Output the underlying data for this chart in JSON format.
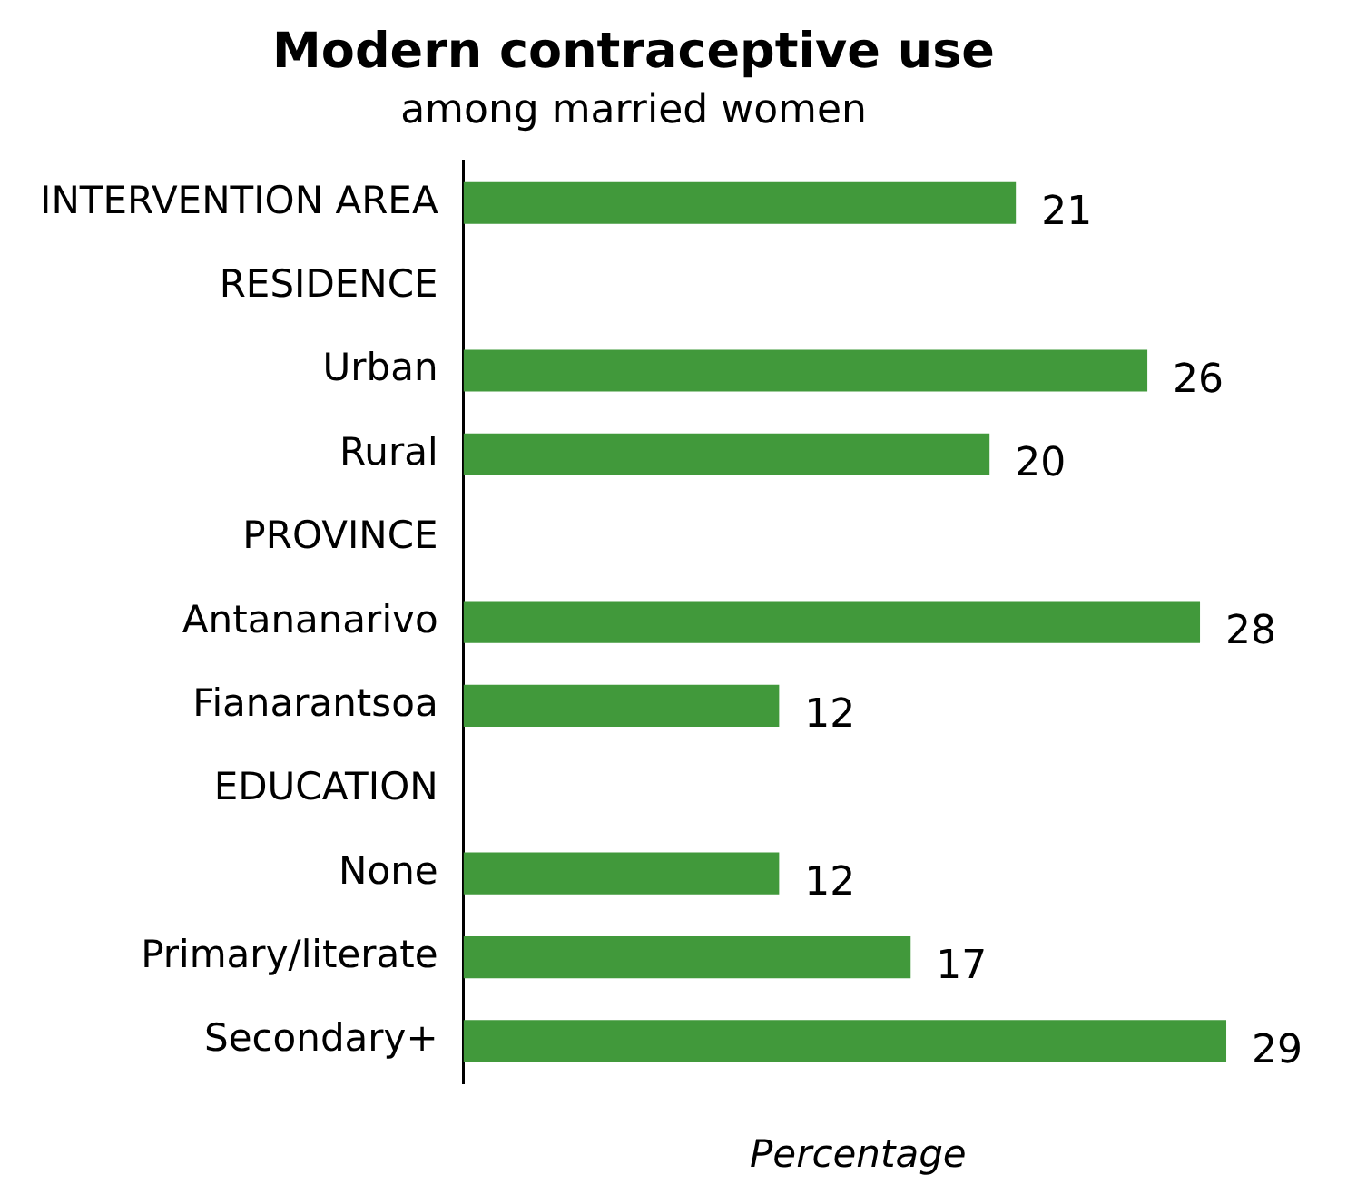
{
  "chart_data": {
    "type": "bar",
    "orientation": "horizontal",
    "title": "Modern contraceptive use",
    "subtitle": "among married women",
    "xlabel": "Percentage",
    "categories": [
      "INTERVENTION AREA",
      "RESIDENCE",
      "Urban",
      "Rural",
      "PROVINCE",
      "Antananarivo",
      "Fianarantsoa",
      "EDUCATION",
      "None",
      "Primary/literate",
      "Secondary+"
    ],
    "values": [
      21,
      null,
      26,
      20,
      null,
      28,
      12,
      null,
      12,
      17,
      29
    ],
    "color": "#41993b",
    "data_labels": true,
    "grid": false,
    "legend": false,
    "tick_labels": "y"
  }
}
